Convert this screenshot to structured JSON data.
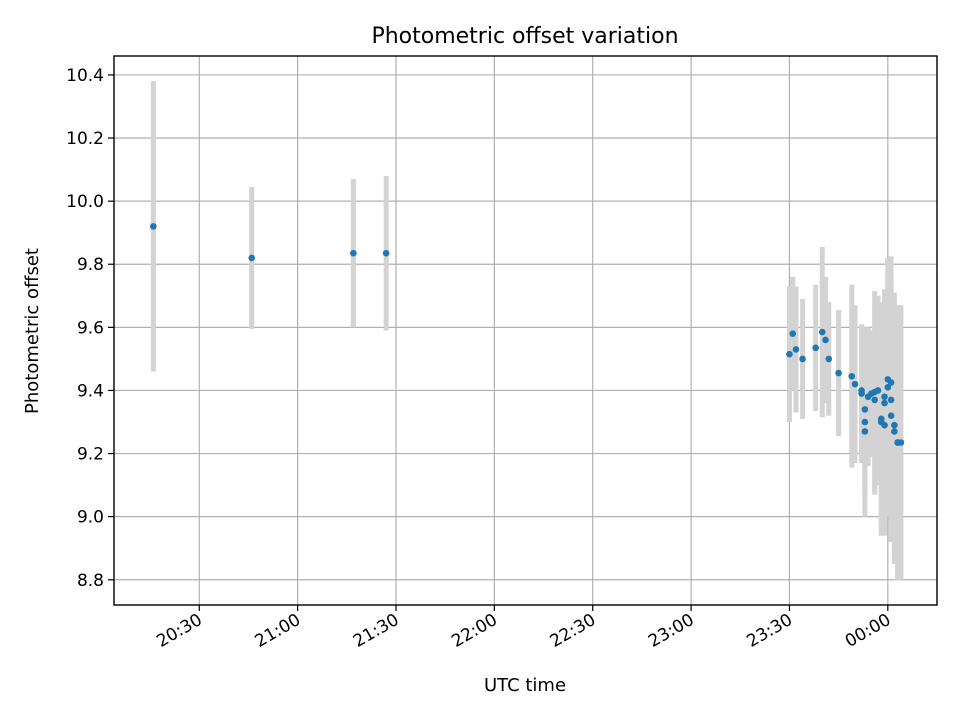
{
  "chart_data": {
    "type": "scatter",
    "title": "Photometric offset variation",
    "xlabel": "UTC time",
    "ylabel": "Photometric offset",
    "xlim": [
      "20:04",
      "00:15"
    ],
    "ylim": [
      8.72,
      10.46
    ],
    "grid": true,
    "x_ticks": [
      "20:30",
      "21:00",
      "21:30",
      "22:00",
      "22:30",
      "23:00",
      "23:30",
      "00:00"
    ],
    "y_ticks": [
      "8.8",
      "9.0",
      "9.2",
      "9.4",
      "9.6",
      "9.8",
      "10.0",
      "10.2",
      "10.4"
    ],
    "colors": {
      "points": "#1f77b4",
      "error_bars": "#d3d3d3",
      "grid": "#b0b0b0"
    },
    "series": [
      {
        "values": [
          {
            "t": "20:16",
            "y": 9.92,
            "err": 0.46
          },
          {
            "t": "20:46",
            "y": 9.82,
            "err": 0.225
          },
          {
            "t": "21:17",
            "y": 9.835,
            "err": 0.235
          },
          {
            "t": "21:27",
            "y": 9.835,
            "err": 0.245
          },
          {
            "t": "23:30",
            "y": 9.515,
            "err": 0.215
          },
          {
            "t": "23:31",
            "y": 9.58,
            "err": 0.18
          },
          {
            "t": "23:32",
            "y": 9.53,
            "err": 0.2
          },
          {
            "t": "23:34",
            "y": 9.5,
            "err": 0.19
          },
          {
            "t": "23:38",
            "y": 9.535,
            "err": 0.2
          },
          {
            "t": "23:40",
            "y": 9.585,
            "err": 0.27
          },
          {
            "t": "23:41",
            "y": 9.56,
            "err": 0.2
          },
          {
            "t": "23:42",
            "y": 9.5,
            "err": 0.18
          },
          {
            "t": "23:45",
            "y": 9.455,
            "err": 0.2
          },
          {
            "t": "23:49",
            "y": 9.445,
            "err": 0.29
          },
          {
            "t": "23:50",
            "y": 9.42,
            "err": 0.25
          },
          {
            "t": "23:52",
            "y": 9.4,
            "err": 0.2
          },
          {
            "t": "23:52",
            "y": 9.39,
            "err": 0.22
          },
          {
            "t": "23:53",
            "y": 9.34,
            "err": 0.26
          },
          {
            "t": "23:53",
            "y": 9.3,
            "err": 0.3
          },
          {
            "t": "23:53",
            "y": 9.27,
            "err": 0.2
          },
          {
            "t": "23:54",
            "y": 9.38,
            "err": 0.22
          },
          {
            "t": "23:55",
            "y": 9.39,
            "err": 0.2
          },
          {
            "t": "23:56",
            "y": 9.37,
            "err": 0.3
          },
          {
            "t": "23:56",
            "y": 9.395,
            "err": 0.32
          },
          {
            "t": "23:57",
            "y": 9.4,
            "err": 0.3
          },
          {
            "t": "23:58",
            "y": 9.3,
            "err": 0.36
          },
          {
            "t": "23:58",
            "y": 9.31,
            "err": 0.37
          },
          {
            "t": "23:59",
            "y": 9.38,
            "err": 0.3
          },
          {
            "t": "23:59",
            "y": 9.36,
            "err": 0.36
          },
          {
            "t": "23:59",
            "y": 9.29,
            "err": 0.35
          },
          {
            "t": "00:00",
            "y": 9.435,
            "err": 0.38
          },
          {
            "t": "00:00",
            "y": 9.41,
            "err": 0.41
          },
          {
            "t": "00:01",
            "y": 9.425,
            "err": 0.4
          },
          {
            "t": "00:01",
            "y": 9.37,
            "err": 0.38
          },
          {
            "t": "00:01",
            "y": 9.32,
            "err": 0.4
          },
          {
            "t": "00:02",
            "y": 9.29,
            "err": 0.42
          },
          {
            "t": "00:02",
            "y": 9.27,
            "err": 0.42
          },
          {
            "t": "00:03",
            "y": 9.235,
            "err": 0.435
          },
          {
            "t": "00:03",
            "y": 9.235,
            "err": 0.435
          },
          {
            "t": "00:04",
            "y": 9.235,
            "err": 0.435
          }
        ]
      }
    ]
  }
}
